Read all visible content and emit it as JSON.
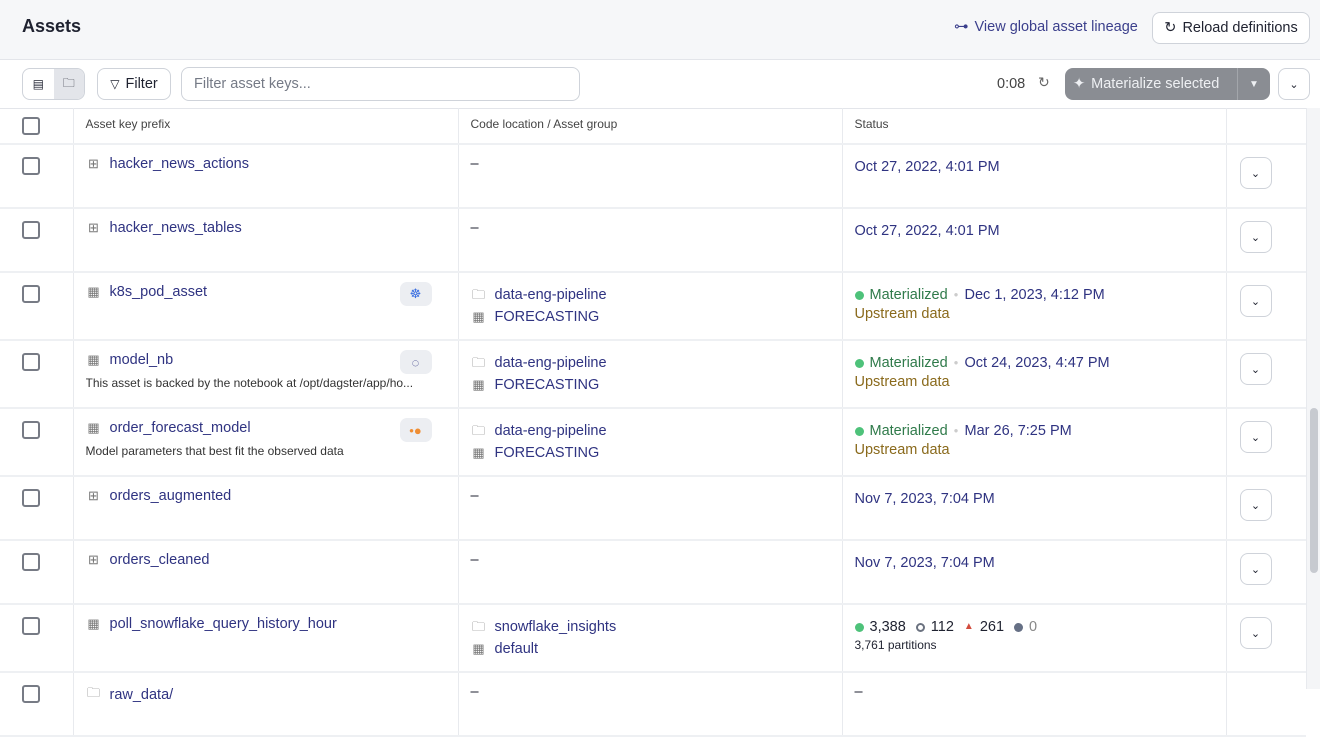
{
  "header": {
    "title": "Assets",
    "lineage_link": "View global asset lineage",
    "reload_button": "Reload definitions"
  },
  "toolbar": {
    "filter_button": "Filter",
    "search_placeholder": "Filter asset keys...",
    "search_value": "",
    "timer": "0:08",
    "materialize_button": "Materialize selected"
  },
  "table": {
    "columns": [
      "Asset key prefix",
      "Code location / Asset group",
      "Status"
    ],
    "rows": [
      {
        "name": "hacker_news_actions",
        "icon": "source-asset-icon",
        "location": "–",
        "status": {
          "date": "Oct 27, 2022, 4:01 PM"
        }
      },
      {
        "name": "hacker_news_tables",
        "icon": "source-asset-icon",
        "location": "–",
        "status": {
          "date": "Oct 27, 2022, 4:01 PM"
        }
      },
      {
        "name": "k8s_pod_asset",
        "icon": "table-icon",
        "badge": "kubernetes-icon",
        "location": "data-eng-pipeline",
        "group": "FORECASTING",
        "status": {
          "state": "Materialized",
          "date": "Dec 1, 2023, 4:12 PM",
          "note": "Upstream data"
        }
      },
      {
        "name": "model_nb",
        "icon": "table-icon",
        "badge": "jupyter-icon",
        "description": "This asset is backed by the notebook at /opt/dagster/app/ho...",
        "location": "data-eng-pipeline",
        "group": "FORECASTING",
        "status": {
          "state": "Materialized",
          "date": "Oct 24, 2023, 4:47 PM",
          "note": "Upstream data"
        }
      },
      {
        "name": "order_forecast_model",
        "icon": "table-icon",
        "badge": "dots-icon",
        "description": "Model parameters that best fit the observed data",
        "location": "data-eng-pipeline",
        "group": "FORECASTING",
        "status": {
          "state": "Materialized",
          "date": "Mar 26, 7:25 PM",
          "note": "Upstream data"
        }
      },
      {
        "name": "orders_augmented",
        "icon": "source-asset-icon",
        "location": "–",
        "status": {
          "date": "Nov 7, 2023, 7:04 PM"
        }
      },
      {
        "name": "orders_cleaned",
        "icon": "source-asset-icon",
        "location": "–",
        "status": {
          "date": "Nov 7, 2023, 7:04 PM"
        }
      },
      {
        "name": "poll_snowflake_query_history_hour",
        "icon": "table-icon",
        "location": "snowflake_insights",
        "group": "default",
        "status": {
          "partitions": {
            "materialized": "3,388",
            "missing": "112",
            "failed": "261",
            "in_progress": "0",
            "total": "3,761 partitions"
          }
        }
      },
      {
        "name": "raw_data/",
        "icon": "folder-icon",
        "location": "–",
        "status": {
          "empty": "–"
        }
      }
    ]
  },
  "colors": {
    "link": "#2f3381",
    "success": "#4ec27a",
    "failed": "#d24c3d",
    "upstream": "#8a6a1c",
    "materialize_bg": "#8a8d93"
  }
}
